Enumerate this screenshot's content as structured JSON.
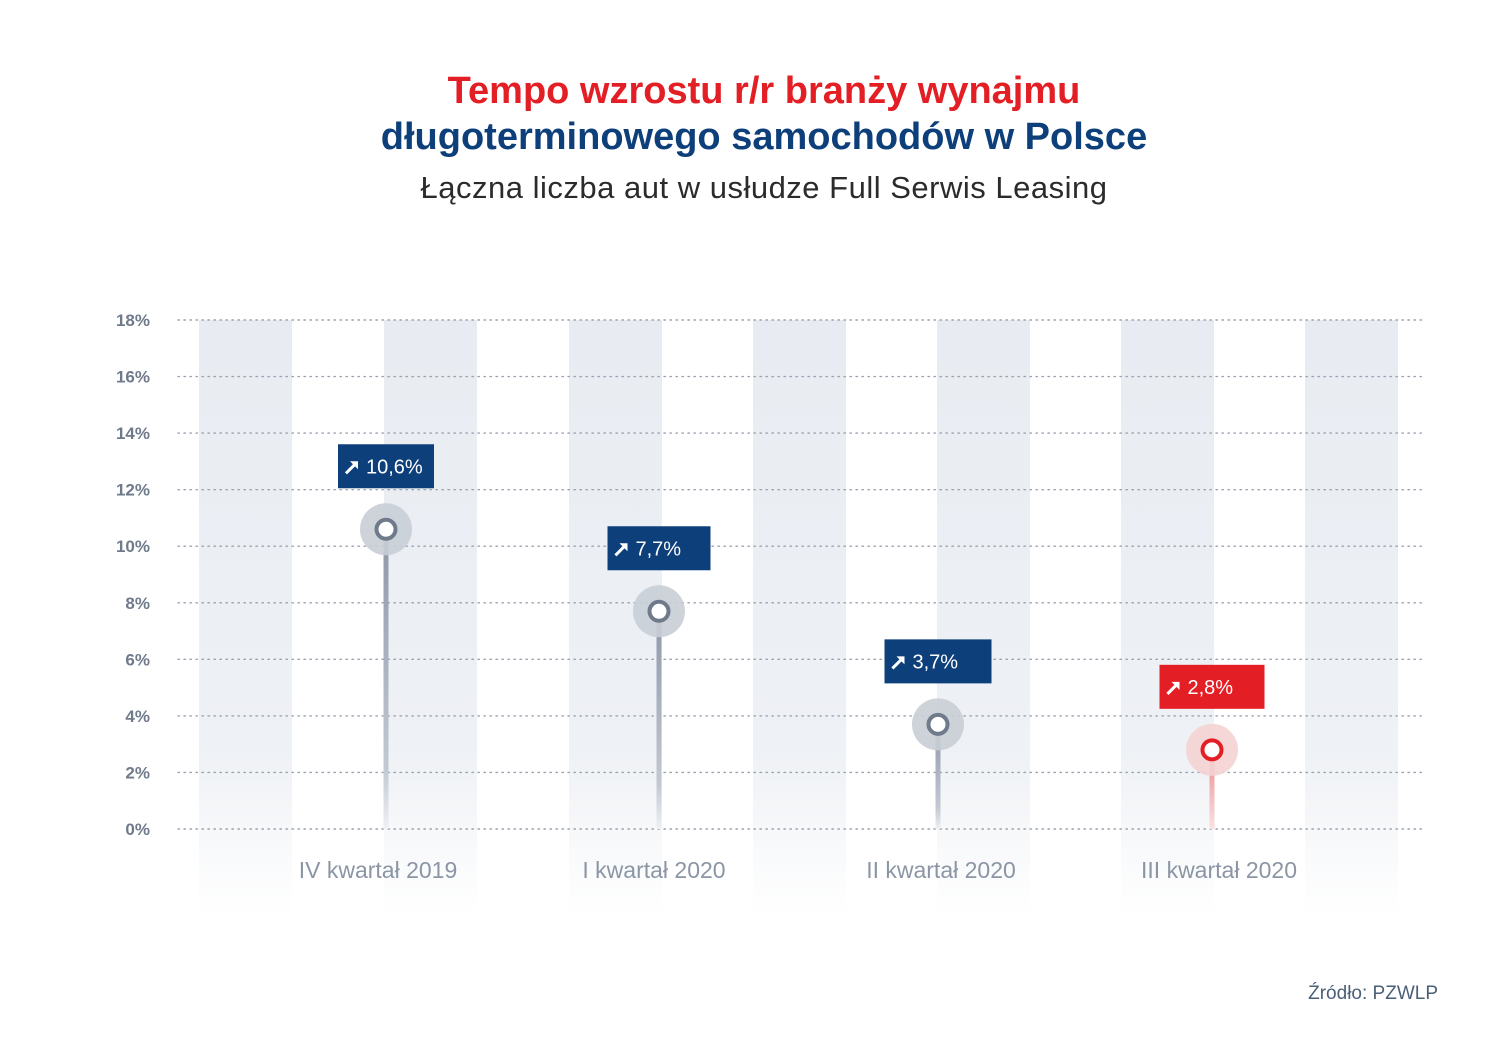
{
  "header": {
    "title_line1": "Tempo wzrostu r/r branży wynajmu",
    "title_line2": "długoterminowego samochodów w Polsce",
    "subtitle": "Łączna liczba aut w usłudze Full Serwis Leasing"
  },
  "source": "Źródło: PZWLP",
  "colors": {
    "title_red": "#e31e24",
    "title_blue": "#0d3f7a",
    "label_blue": "#0d3f7a",
    "label_red": "#e31e24",
    "stem": "#9aa4b4",
    "marker_halo": "#c9ced6",
    "band": "#e8ecf2"
  },
  "chart_data": {
    "type": "lollipop",
    "categories": [
      "IV kwartał 2019",
      "I kwartał 2020",
      "II kwartał 2020",
      "III kwartał 2020"
    ],
    "values": [
      10.6,
      7.7,
      3.7,
      2.8
    ],
    "value_labels": [
      "10,6%",
      "7,7%",
      "3,7%",
      "2,8%"
    ],
    "label_icon": "arrow-up-right-icon",
    "highlight_index": 3,
    "yticks": [
      "0%",
      "2%",
      "4%",
      "6%",
      "8%",
      "10%",
      "12%",
      "14%",
      "16%",
      "18%"
    ],
    "ylim": [
      0,
      18
    ],
    "grid": true
  }
}
